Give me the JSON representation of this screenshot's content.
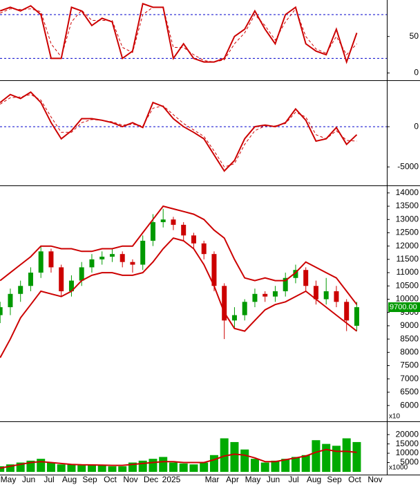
{
  "x_axis": {
    "categories": [
      "May",
      "Jun",
      "Jul",
      "Aug",
      "Sep",
      "Oct",
      "Nov",
      "Dec",
      "2025",
      null,
      "Mar",
      "Apr",
      "May",
      "Jun",
      "Jul",
      "Aug",
      "Sep",
      "Oct",
      "Nov"
    ]
  },
  "chart_data": [
    {
      "type": "line",
      "ylim": [
        -10,
        100
      ],
      "yticks": [
        0,
        50
      ],
      "reference_lines": [
        80,
        20
      ],
      "reference_color": "#0000cc",
      "series": [
        {
          "color": "#cc0000",
          "style": "solid",
          "values": [
            85,
            90,
            85,
            92,
            80,
            20,
            20,
            90,
            85,
            65,
            75,
            70,
            20,
            30,
            95,
            90,
            90,
            20,
            40,
            20,
            15,
            15,
            20,
            50,
            60,
            85,
            60,
            40,
            80,
            90,
            40,
            30,
            25,
            60,
            15,
            55
          ]
        },
        {
          "color": "#cc0000",
          "style": "dashed",
          "values": [
            82,
            88,
            87,
            88,
            84,
            40,
            22,
            70,
            86,
            72,
            72,
            72,
            35,
            28,
            80,
            90,
            90,
            35,
            35,
            25,
            17,
            15,
            18,
            40,
            55,
            80,
            65,
            45,
            70,
            88,
            50,
            33,
            27,
            50,
            25,
            40
          ]
        }
      ]
    },
    {
      "type": "line",
      "ylim": [
        -7300,
        5600
      ],
      "yticks": [
        0,
        -5000
      ],
      "reference_lines": [
        0
      ],
      "reference_color": "#0000cc",
      "series": [
        {
          "color": "#cc0000",
          "style": "solid",
          "values": [
            3000,
            4000,
            3500,
            4300,
            3000,
            500,
            -1500,
            -500,
            1000,
            1000,
            800,
            500,
            0,
            500,
            -100,
            3000,
            2500,
            1000,
            0,
            -700,
            -1500,
            -3500,
            -5500,
            -4200,
            -1500,
            0,
            200,
            0,
            500,
            2200,
            800,
            -1800,
            -1500,
            -100,
            -2200,
            -1000
          ]
        },
        {
          "color": "#cc0000",
          "style": "dashed",
          "values": [
            2800,
            3600,
            3700,
            4000,
            3300,
            1200,
            -700,
            -700,
            500,
            900,
            800,
            600,
            200,
            300,
            100,
            2300,
            2600,
            1500,
            400,
            -400,
            -1200,
            -3000,
            -5000,
            -4600,
            -2200,
            -500,
            100,
            100,
            400,
            1800,
            1200,
            -1000,
            -1500,
            -500,
            -1700,
            -1800
          ]
        }
      ]
    },
    {
      "type": "candlestick",
      "ylim": [
        5430,
        14230
      ],
      "yticks": [
        6000,
        6500,
        7000,
        7500,
        8000,
        8500,
        9000,
        9500,
        10000,
        10500,
        11000,
        11500,
        12000,
        12500,
        13000,
        13500,
        14000
      ],
      "unit_label": "x10",
      "up_color": "#009900",
      "down_color": "#cc0000",
      "band_color": "#cc0000",
      "open": [
        9400,
        9700,
        10200,
        10500,
        11000,
        11800,
        11200,
        10300,
        10700,
        11200,
        11500,
        11600,
        11700,
        11400,
        11300,
        12200,
        12900,
        13000,
        12800,
        12400,
        12100,
        11700,
        10500,
        9200,
        9400,
        9900,
        10200,
        10100,
        10300,
        10800,
        11100,
        10500,
        10000,
        10300,
        9900,
        9000
      ],
      "high": [
        9900,
        10400,
        10700,
        11200,
        12000,
        11900,
        11300,
        10900,
        11400,
        11700,
        11800,
        11900,
        11800,
        11500,
        12400,
        13200,
        13400,
        13100,
        12900,
        12500,
        12200,
        11800,
        10600,
        9700,
        10000,
        10400,
        10300,
        10500,
        11000,
        11300,
        11200,
        10700,
        10800,
        10500,
        10000,
        9900
      ],
      "low": [
        9100,
        9400,
        9900,
        10300,
        10800,
        11000,
        10100,
        10100,
        10500,
        11000,
        11300,
        11400,
        11200,
        11000,
        11100,
        12000,
        12700,
        12600,
        12200,
        11900,
        11500,
        10300,
        8500,
        8900,
        9200,
        9700,
        9900,
        9900,
        10100,
        10600,
        10300,
        9800,
        9800,
        9700,
        8800,
        8800
      ],
      "close": [
        9700,
        10200,
        10500,
        11000,
        11800,
        11200,
        10300,
        10700,
        11200,
        11500,
        11600,
        11700,
        11400,
        11300,
        12200,
        12900,
        13000,
        12800,
        12400,
        12100,
        11700,
        10500,
        9200,
        9400,
        9900,
        10200,
        10100,
        10300,
        10800,
        11100,
        10500,
        10000,
        10300,
        9900,
        9200,
        9700
      ],
      "upper_band": [
        10700,
        11000,
        11300,
        11600,
        12000,
        12000,
        11900,
        11900,
        11800,
        11800,
        11900,
        11900,
        12000,
        12000,
        12500,
        13000,
        13500,
        13400,
        13300,
        13200,
        13000,
        12600,
        12300,
        11500,
        10800,
        10700,
        10800,
        10700,
        10700,
        11000,
        11400,
        11200,
        11000,
        10800,
        10300,
        9800
      ],
      "lower_band": [
        7800,
        8500,
        9300,
        9800,
        10300,
        10200,
        10100,
        10300,
        10700,
        10900,
        11000,
        11000,
        10900,
        10900,
        11000,
        11400,
        11900,
        12300,
        12200,
        11900,
        11300,
        10500,
        9500,
        8900,
        8800,
        9200,
        9600,
        9800,
        9900,
        10100,
        10300,
        10000,
        9700,
        9400,
        9100,
        8800
      ],
      "last_price": {
        "value": 9700,
        "label": "9700.00"
      },
      "last_price_color": "#009900"
    },
    {
      "type": "bar",
      "ylim": [
        0,
        26000
      ],
      "yticks": [
        5000,
        10000,
        15000,
        20000
      ],
      "unit_label": "x1000",
      "color": "#00aa00",
      "values": [
        3000,
        4000,
        5000,
        6000,
        7000,
        5000,
        4000,
        4000,
        3500,
        4000,
        3500,
        3000,
        3000,
        5000,
        6000,
        7000,
        8000,
        5000,
        4500,
        4000,
        5000,
        9000,
        18000,
        16000,
        12000,
        7000,
        5000,
        6000,
        7000,
        8000,
        9000,
        17000,
        15000,
        14000,
        18000,
        16000
      ],
      "average": {
        "color": "#cc0000",
        "values": [
          2000,
          3000,
          4000,
          5000,
          5500,
          5000,
          4500,
          4000,
          3800,
          3700,
          3600,
          3500,
          3500,
          4000,
          4500,
          5000,
          5500,
          5500,
          5000,
          5000,
          5000,
          6500,
          8500,
          9500,
          9000,
          7500,
          5500,
          5500,
          6500,
          7500,
          8500,
          10500,
          12000,
          11000,
          11000,
          10500
        ]
      }
    }
  ]
}
